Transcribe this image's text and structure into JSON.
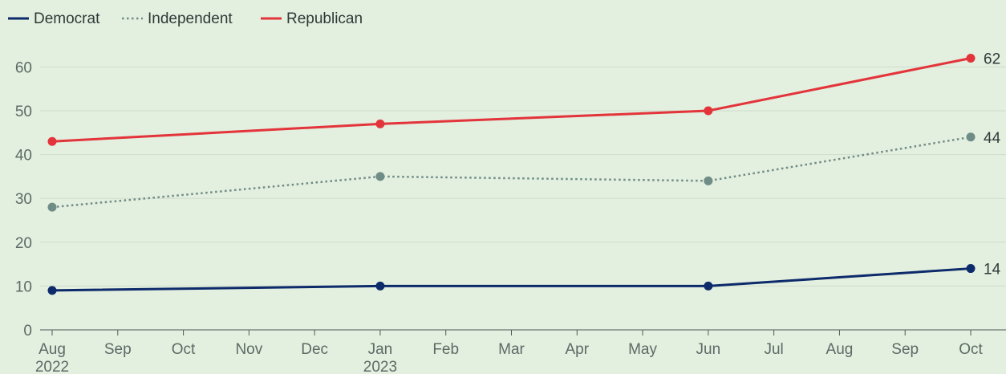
{
  "chart_data": {
    "type": "line",
    "x": [
      "2022-08",
      "2023-01",
      "2023-06",
      "2023-10"
    ],
    "series": [
      {
        "name": "Democrat",
        "values": [
          9,
          10,
          10,
          14
        ],
        "color": "#0d2a6b",
        "style": "solid"
      },
      {
        "name": "Independent",
        "values": [
          28,
          35,
          34,
          44
        ],
        "color": "#6f8c86",
        "style": "dotted"
      },
      {
        "name": "Republican",
        "values": [
          43,
          47,
          50,
          62
        ],
        "color": "#e3343b",
        "style": "solid"
      }
    ],
    "end_labels": [
      "14",
      "44",
      "62"
    ],
    "ylim": [
      0,
      66
    ],
    "yticks": [
      "0",
      "10",
      "20",
      "30",
      "40",
      "50",
      "60"
    ],
    "xticks": [
      {
        "month": "Aug",
        "year": "2022"
      },
      {
        "month": "Sep",
        "year": ""
      },
      {
        "month": "Oct",
        "year": ""
      },
      {
        "month": "Nov",
        "year": ""
      },
      {
        "month": "Dec",
        "year": ""
      },
      {
        "month": "Jan",
        "year": "2023"
      },
      {
        "month": "Feb",
        "year": ""
      },
      {
        "month": "Mar",
        "year": ""
      },
      {
        "month": "Apr",
        "year": ""
      },
      {
        "month": "May",
        "year": ""
      },
      {
        "month": "Jun",
        "year": ""
      },
      {
        "month": "Jul",
        "year": ""
      },
      {
        "month": "Aug",
        "year": ""
      },
      {
        "month": "Sep",
        "year": ""
      },
      {
        "month": "Oct",
        "year": ""
      }
    ],
    "legend": {
      "position": "top-left",
      "entries": [
        "Democrat",
        "Independent",
        "Republican"
      ]
    },
    "grid": true
  }
}
